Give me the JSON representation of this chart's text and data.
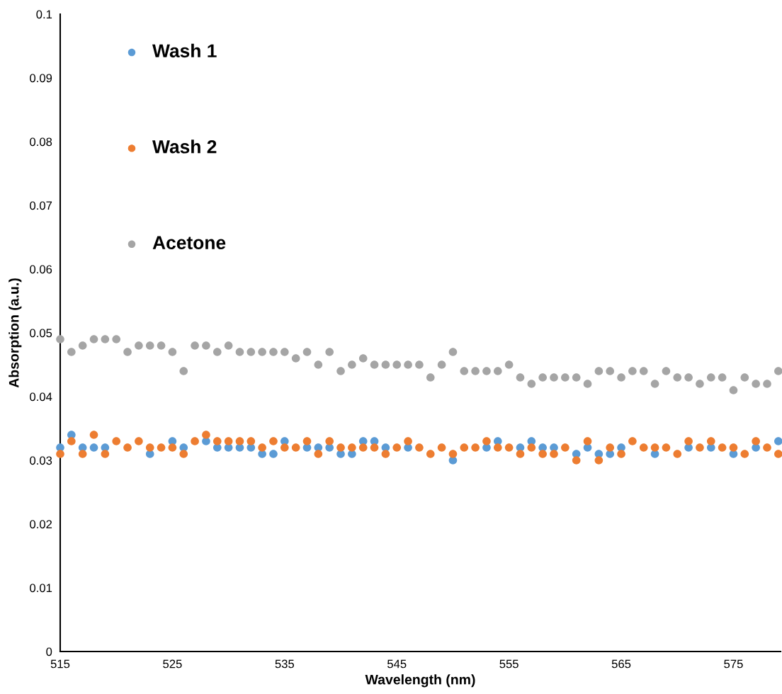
{
  "chart_data": {
    "type": "scatter",
    "xlabel": "Wavelength (nm)",
    "ylabel": "Absorption (a.u.)",
    "x": [
      515,
      516,
      517,
      518,
      519,
      520,
      521,
      522,
      523,
      524,
      525,
      526,
      527,
      528,
      529,
      530,
      531,
      532,
      533,
      534,
      535,
      536,
      537,
      538,
      539,
      540,
      541,
      542,
      543,
      544,
      545,
      546,
      547,
      548,
      549,
      550,
      551,
      552,
      553,
      554,
      555,
      556,
      557,
      558,
      559,
      560,
      561,
      562,
      563,
      564,
      565,
      566,
      567,
      568,
      569,
      570,
      571,
      572,
      573,
      574,
      575,
      576,
      577,
      578,
      579
    ],
    "series": [
      {
        "name": "Wash 1",
        "color": "#5b9bd5",
        "values": [
          0.032,
          0.034,
          0.032,
          0.032,
          0.032,
          null,
          null,
          null,
          0.031,
          null,
          0.033,
          0.032,
          null,
          0.033,
          0.032,
          0.032,
          0.032,
          0.032,
          0.031,
          0.031,
          0.033,
          null,
          0.032,
          0.032,
          0.032,
          0.031,
          0.031,
          0.033,
          0.033,
          0.032,
          null,
          0.032,
          null,
          null,
          null,
          0.03,
          null,
          null,
          0.032,
          0.033,
          null,
          0.032,
          0.033,
          0.032,
          0.032,
          null,
          0.031,
          0.032,
          0.031,
          0.031,
          0.032,
          null,
          null,
          0.031,
          null,
          null,
          0.032,
          null,
          0.032,
          null,
          0.031,
          null,
          0.032,
          null,
          0.033
        ]
      },
      {
        "name": "Wash 2",
        "color": "#ed7d31",
        "values": [
          0.031,
          0.033,
          0.031,
          0.034,
          0.031,
          0.033,
          0.032,
          0.033,
          0.032,
          0.032,
          0.032,
          0.031,
          0.033,
          0.034,
          0.033,
          0.033,
          0.033,
          0.033,
          0.032,
          0.033,
          0.032,
          0.032,
          0.033,
          0.031,
          0.033,
          0.032,
          0.032,
          0.032,
          0.032,
          0.031,
          0.032,
          0.033,
          0.032,
          0.031,
          0.032,
          0.031,
          0.032,
          0.032,
          0.033,
          0.032,
          0.032,
          0.031,
          0.032,
          0.031,
          0.031,
          0.032,
          0.03,
          0.033,
          0.03,
          0.032,
          0.031,
          0.033,
          0.032,
          0.032,
          0.032,
          0.031,
          0.033,
          0.032,
          0.033,
          0.032,
          0.032,
          0.031,
          0.033,
          0.032,
          0.031
        ]
      },
      {
        "name": "Acetone",
        "color": "#a5a5a5",
        "values": [
          0.049,
          0.047,
          0.048,
          0.049,
          0.049,
          0.049,
          0.047,
          0.048,
          0.048,
          0.048,
          0.047,
          0.044,
          0.048,
          0.048,
          0.047,
          0.048,
          0.047,
          0.047,
          0.047,
          0.047,
          0.047,
          0.046,
          0.047,
          0.045,
          0.047,
          0.044,
          0.045,
          0.046,
          0.045,
          0.045,
          0.045,
          0.045,
          0.045,
          0.043,
          0.045,
          0.047,
          0.044,
          0.044,
          0.044,
          0.044,
          0.045,
          0.043,
          0.042,
          0.043,
          0.043,
          0.043,
          0.043,
          0.042,
          0.044,
          0.044,
          0.043,
          0.044,
          0.044,
          0.042,
          0.044,
          0.043,
          0.043,
          0.042,
          0.043,
          0.043,
          0.041,
          0.043,
          0.042,
          0.042,
          0.044
        ]
      }
    ],
    "xlim": [
      515,
      579.2
    ],
    "xticks": [
      515,
      525,
      535,
      545,
      555,
      565,
      575
    ],
    "ylim": [
      0,
      0.1
    ],
    "yticks": [
      0,
      0.01,
      0.02,
      0.03,
      0.04,
      0.05,
      0.06,
      0.07,
      0.08,
      0.09,
      0.1
    ],
    "grid": false,
    "legend": "top left",
    "marker": "circle"
  }
}
